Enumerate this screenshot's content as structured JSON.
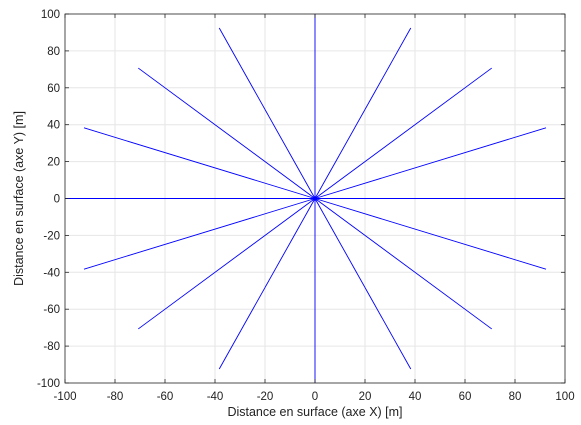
{
  "chart_data": {
    "type": "line",
    "title": "",
    "xlabel": "Distance en surface (axe X) [m]",
    "ylabel": "Distance en surface (axe Y) [m]",
    "xlim": [
      -100,
      100
    ],
    "ylim": [
      -100,
      100
    ],
    "grid": true,
    "legend": "none",
    "x_ticks": [
      -100,
      -80,
      -60,
      -40,
      -20,
      0,
      20,
      40,
      60,
      80,
      100
    ],
    "y_ticks": [
      -100,
      -80,
      -60,
      -40,
      -20,
      0,
      20,
      40,
      60,
      80,
      100
    ],
    "x_tick_labels": [
      "-100",
      "-80",
      "-60",
      "-40",
      "-20",
      "0",
      "20",
      "40",
      "60",
      "80",
      "100"
    ],
    "y_tick_labels": [
      "-100",
      "-80",
      "-60",
      "-40",
      "-20",
      "0",
      "20",
      "40",
      "60",
      "80",
      "100"
    ],
    "line_color": "#0000ff",
    "axis_color": "#262626",
    "grid_color": "#e6e6e6",
    "series": [
      {
        "x": [
          0,
          100
        ],
        "y": [
          0,
          0
        ]
      },
      {
        "x": [
          0,
          92.4
        ],
        "y": [
          0,
          38.3
        ]
      },
      {
        "x": [
          0,
          70.7
        ],
        "y": [
          0,
          70.7
        ]
      },
      {
        "x": [
          0,
          38.3
        ],
        "y": [
          0,
          92.4
        ]
      },
      {
        "x": [
          0,
          0
        ],
        "y": [
          0,
          100
        ]
      },
      {
        "x": [
          0,
          -38.3
        ],
        "y": [
          0,
          92.4
        ]
      },
      {
        "x": [
          0,
          -70.7
        ],
        "y": [
          0,
          70.7
        ]
      },
      {
        "x": [
          0,
          -92.4
        ],
        "y": [
          0,
          38.3
        ]
      },
      {
        "x": [
          0,
          -100
        ],
        "y": [
          0,
          0
        ]
      },
      {
        "x": [
          0,
          -92.4
        ],
        "y": [
          0,
          -38.3
        ]
      },
      {
        "x": [
          0,
          -70.7
        ],
        "y": [
          0,
          -70.7
        ]
      },
      {
        "x": [
          0,
          -38.3
        ],
        "y": [
          0,
          -92.4
        ]
      },
      {
        "x": [
          0,
          0
        ],
        "y": [
          0,
          -100
        ]
      },
      {
        "x": [
          0,
          38.3
        ],
        "y": [
          0,
          -92.4
        ]
      },
      {
        "x": [
          0,
          70.7
        ],
        "y": [
          0,
          -70.7
        ]
      },
      {
        "x": [
          0,
          92.4
        ],
        "y": [
          0,
          -38.3
        ]
      }
    ]
  }
}
